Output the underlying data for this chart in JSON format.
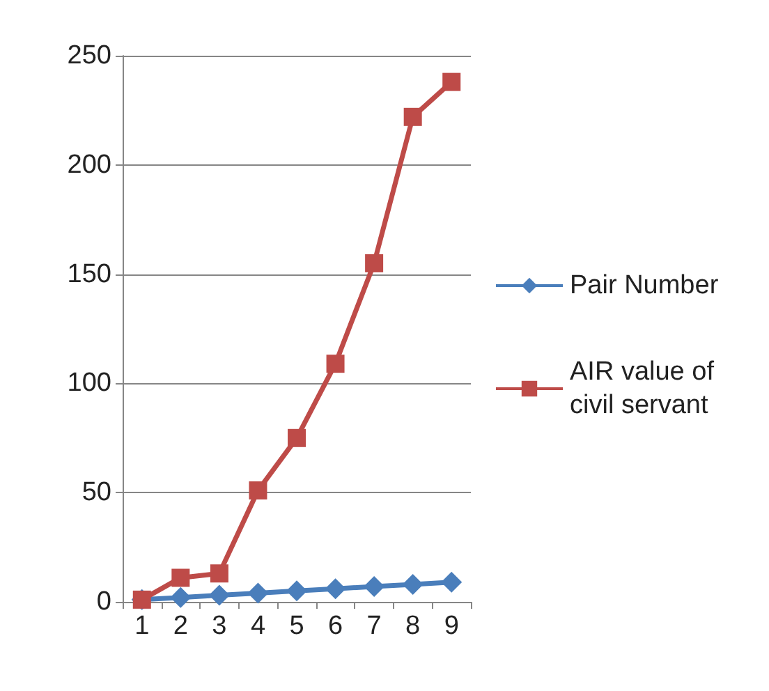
{
  "chart_data": {
    "type": "line",
    "categories": [
      "1",
      "2",
      "3",
      "4",
      "5",
      "6",
      "7",
      "8",
      "9"
    ],
    "series": [
      {
        "name": "Pair Number",
        "color": "#4a7ebb",
        "marker": "diamond",
        "values": [
          1,
          2,
          3,
          4,
          5,
          6,
          7,
          8,
          9
        ]
      },
      {
        "name": "AIR value of civil servant",
        "color": "#be4b48",
        "marker": "square",
        "values": [
          1,
          11,
          13,
          51,
          75,
          109,
          155,
          222,
          238
        ]
      }
    ],
    "ylim": [
      0,
      250
    ],
    "yticks": [
      0,
      50,
      100,
      150,
      200,
      250
    ],
    "grid": "y",
    "legend": "right",
    "line_style": "solid"
  }
}
